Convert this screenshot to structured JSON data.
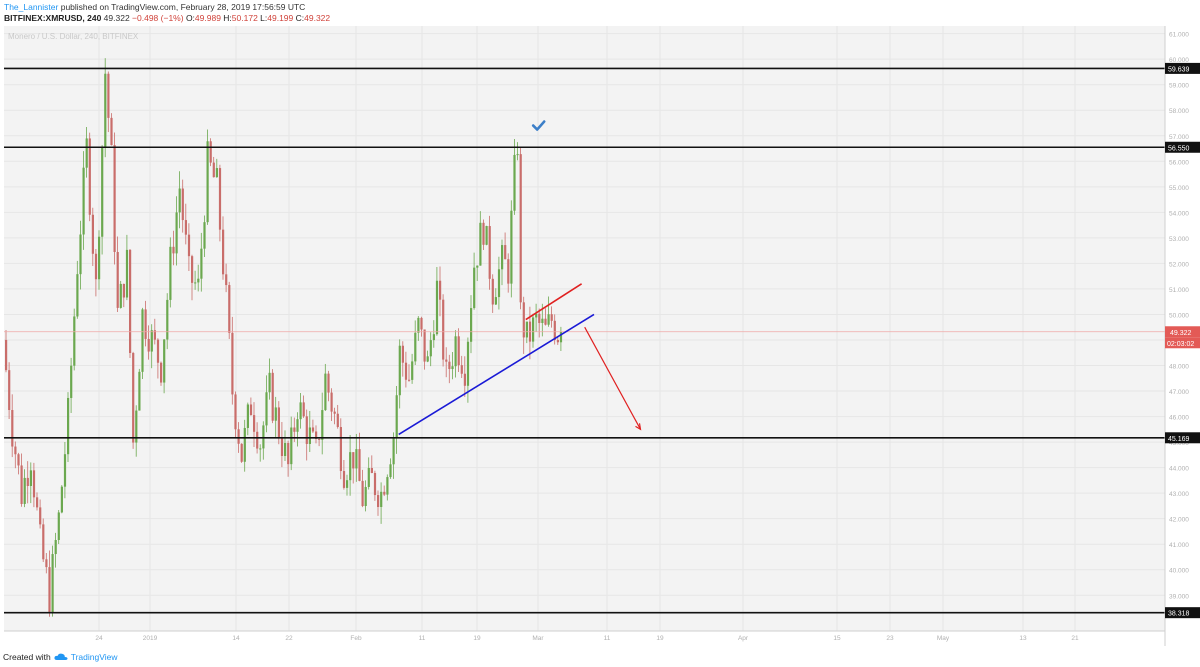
{
  "header": {
    "author": "The_Lannister",
    "published": "published on TradingView.com, February 28, 2019 17:56:59 UTC",
    "symbol": "BITFINEX:XMRUSD, 240",
    "last": "49.322",
    "change": "−0.498 (−1%)",
    "o_label": "O:",
    "o": "49.989",
    "h_label": "H:",
    "h": "50.172",
    "l_label": "L:",
    "l": "49.199",
    "c_label": "C:",
    "c": "49.322"
  },
  "watermark": "Monero / U.S. Dollar, 240, BITFINEX",
  "footer": {
    "created_with": "Created with",
    "brand": "TradingView"
  },
  "colors": {
    "up": "#6ba84f",
    "down": "#c96d6a",
    "grid": "#e6e6e6",
    "bg": "#f3f3f3",
    "support": "#111111",
    "trendline": "#1a1ad6",
    "arrow": "#e02020",
    "price_label": "#e35a56",
    "check": "#3c7fc8"
  },
  "chart_data": {
    "type": "candlestick",
    "y_scale_ticks": [
      "61.000",
      "60.000",
      "59.000",
      "58.000",
      "57.000",
      "56.000",
      "55.000",
      "54.000",
      "53.000",
      "52.000",
      "51.000",
      "50.000",
      "49.000",
      "48.000",
      "47.000",
      "46.000",
      "45.000",
      "44.000",
      "43.000",
      "42.000",
      "41.000",
      "40.000",
      "39.000"
    ],
    "ylim": [
      37.6,
      61.3
    ],
    "x_tick_labels": [
      "24",
      "2019",
      "14",
      "22",
      "Feb",
      "11",
      "19",
      "Mar",
      "11",
      "19",
      "Apr",
      "15",
      "23",
      "May",
      "13",
      "21"
    ],
    "horizontal_levels": [
      "59.639",
      "56.550",
      "45.169",
      "38.318"
    ],
    "horizontal_level_values": [
      59.639,
      56.55,
      45.169,
      38.318
    ],
    "current_price": "49.322",
    "current_price_value": 49.322,
    "countdown": "02:03:02",
    "price_path": [
      {
        "t": 0,
        "p": 49.0
      },
      {
        "t": 3,
        "p": 45.5
      },
      {
        "t": 6,
        "p": 43.0
      },
      {
        "t": 9,
        "p": 44.5
      },
      {
        "t": 12,
        "p": 41.0
      },
      {
        "t": 15,
        "p": 39.0
      },
      {
        "t": 18,
        "p": 42.0
      },
      {
        "t": 21,
        "p": 46.0
      },
      {
        "t": 24,
        "p": 52.0
      },
      {
        "t": 27,
        "p": 56.5
      },
      {
        "t": 30,
        "p": 51.0
      },
      {
        "t": 33,
        "p": 59.5
      },
      {
        "t": 35,
        "p": 56.0
      },
      {
        "t": 37,
        "p": 50.0
      },
      {
        "t": 40,
        "p": 52.0
      },
      {
        "t": 42,
        "p": 45.0
      },
      {
        "t": 45,
        "p": 50.0
      },
      {
        "t": 48,
        "p": 49.0
      },
      {
        "t": 51,
        "p": 48.0
      },
      {
        "t": 54,
        "p": 52.0
      },
      {
        "t": 57,
        "p": 55.0
      },
      {
        "t": 60,
        "p": 51.5
      },
      {
        "t": 63,
        "p": 51.0
      },
      {
        "t": 66,
        "p": 56.0
      },
      {
        "t": 69,
        "p": 55.0
      },
      {
        "t": 72,
        "p": 50.5
      },
      {
        "t": 74,
        "p": 47.0
      },
      {
        "t": 77,
        "p": 44.5
      },
      {
        "t": 80,
        "p": 46.5
      },
      {
        "t": 83,
        "p": 45.0
      },
      {
        "t": 86,
        "p": 47.0
      },
      {
        "t": 89,
        "p": 45.5
      },
      {
        "t": 92,
        "p": 44.0
      },
      {
        "t": 95,
        "p": 46.5
      },
      {
        "t": 98,
        "p": 45.5
      },
      {
        "t": 101,
        "p": 44.5
      },
      {
        "t": 104,
        "p": 47.5
      },
      {
        "t": 107,
        "p": 46.0
      },
      {
        "t": 110,
        "p": 44.0
      },
      {
        "t": 113,
        "p": 44.5
      },
      {
        "t": 116,
        "p": 42.8
      },
      {
        "t": 119,
        "p": 43.5
      },
      {
        "t": 122,
        "p": 43.0
      },
      {
        "t": 124,
        "p": 44.2
      },
      {
        "t": 126,
        "p": 45.3
      },
      {
        "t": 128,
        "p": 48.5
      },
      {
        "t": 131,
        "p": 47.5
      },
      {
        "t": 134,
        "p": 49.5
      },
      {
        "t": 137,
        "p": 48.0
      },
      {
        "t": 140,
        "p": 51.0
      },
      {
        "t": 143,
        "p": 47.5
      },
      {
        "t": 146,
        "p": 49.0
      },
      {
        "t": 149,
        "p": 48.0
      },
      {
        "t": 152,
        "p": 52.0
      },
      {
        "t": 155,
        "p": 53.5
      },
      {
        "t": 158,
        "p": 51.0
      },
      {
        "t": 161,
        "p": 52.0
      },
      {
        "t": 163,
        "p": 51.8
      },
      {
        "t": 165,
        "p": 55.5
      },
      {
        "t": 166,
        "p": 56.8
      },
      {
        "t": 167,
        "p": 50.0
      },
      {
        "t": 169,
        "p": 49.0
      },
      {
        "t": 172,
        "p": 49.7
      },
      {
        "t": 175,
        "p": 49.3
      },
      {
        "t": 177,
        "p": 49.8
      },
      {
        "t": 179,
        "p": 49.322
      }
    ],
    "annotations": {
      "blue_trendline": [
        [
          127,
          45.3
        ],
        [
          190,
          50.0
        ]
      ],
      "red_line": [
        [
          168,
          49.8
        ],
        [
          186,
          51.2
        ]
      ],
      "red_arrow": [
        [
          187,
          49.5
        ],
        [
          205,
          45.5
        ]
      ],
      "checkmark": [
        172,
        57.4
      ]
    }
  }
}
